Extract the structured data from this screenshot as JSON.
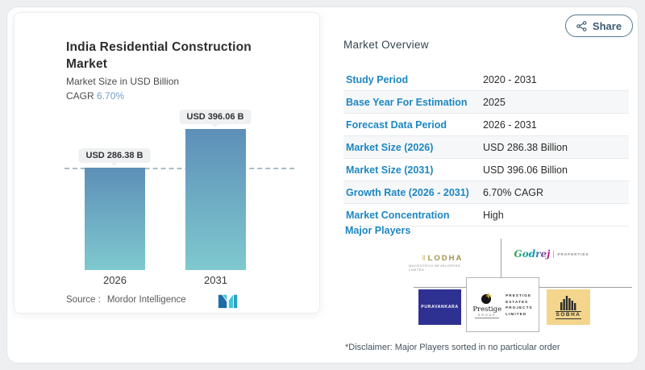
{
  "header": {
    "share_label": "Share",
    "share_icon": "share-nodes-icon"
  },
  "chart_card": {
    "title_lines": [
      "India Residential Construction",
      "Market"
    ],
    "subtitle": "Market Size in USD Billion",
    "cagr_label": "CAGR",
    "cagr_value": "6.70%",
    "source_label": "Source :",
    "source_name": "Mordor Intelligence",
    "logo": "mordor-intelligence-logo"
  },
  "chart_data": {
    "type": "bar",
    "title": "India Residential Construction Market",
    "ylabel": "Market Size in USD Billion",
    "categories": [
      "2026",
      "2031"
    ],
    "values": [
      286.38,
      396.06
    ],
    "value_labels": [
      "USD 286.38 B",
      "USD 396.06 B"
    ],
    "unit": "USD Billion",
    "cagr_percent": 6.7,
    "ylim": [
      0,
      420
    ],
    "grid": false,
    "legend": false,
    "reference_line": {
      "style": "dashed",
      "value": 286.38
    },
    "bar_gradient_top": "#5d8fb8",
    "bar_gradient_bottom": "#7fc9cf"
  },
  "overview": {
    "title": "Market Overview",
    "rows": [
      {
        "label": "Study Period",
        "value": "2020 - 2031"
      },
      {
        "label": "Base Year For Estimation",
        "value": "2025"
      },
      {
        "label": "Forecast Data Period",
        "value": "2026 - 2031"
      },
      {
        "label": "Market Size (2026)",
        "value": "USD 286.38 Billion"
      },
      {
        "label": "Market Size (2031)",
        "value": "USD 396.06 Billion"
      },
      {
        "label": "Growth Rate (2026 - 2031)",
        "value": "6.70% CAGR"
      },
      {
        "label": "Market Concentration",
        "value": "High"
      }
    ]
  },
  "major_players": {
    "title": "Major Players",
    "disclaimer": "*Disclaimer: Major Players sorted in no particular order",
    "logos": {
      "lodha": {
        "name": "LODHA",
        "subtext": "MACROTECH DEVELOPERS LIMITED"
      },
      "godrej": {
        "script": "Godrej",
        "suffix": "PROPERTIES"
      },
      "puravankara": {
        "name": "PURAVANKARA"
      },
      "prestige": {
        "brand": "Prestige",
        "brand_sub": "GROUP",
        "lines": [
          "PRESTIGE",
          "ESTATES",
          "PROJECTS",
          "LIMITED"
        ]
      },
      "sobha": {
        "name": "SOBHA"
      }
    }
  },
  "colors": {
    "accent_blue": "#1d87c2",
    "cagr_blue": "#6fa0cb",
    "bar_top": "#5d8fb8",
    "bar_bottom": "#7fc9cf",
    "puravankara_bg": "#2e3192",
    "sobha_bg": "#f3d68c",
    "lodha_gold": "#a5914c"
  }
}
